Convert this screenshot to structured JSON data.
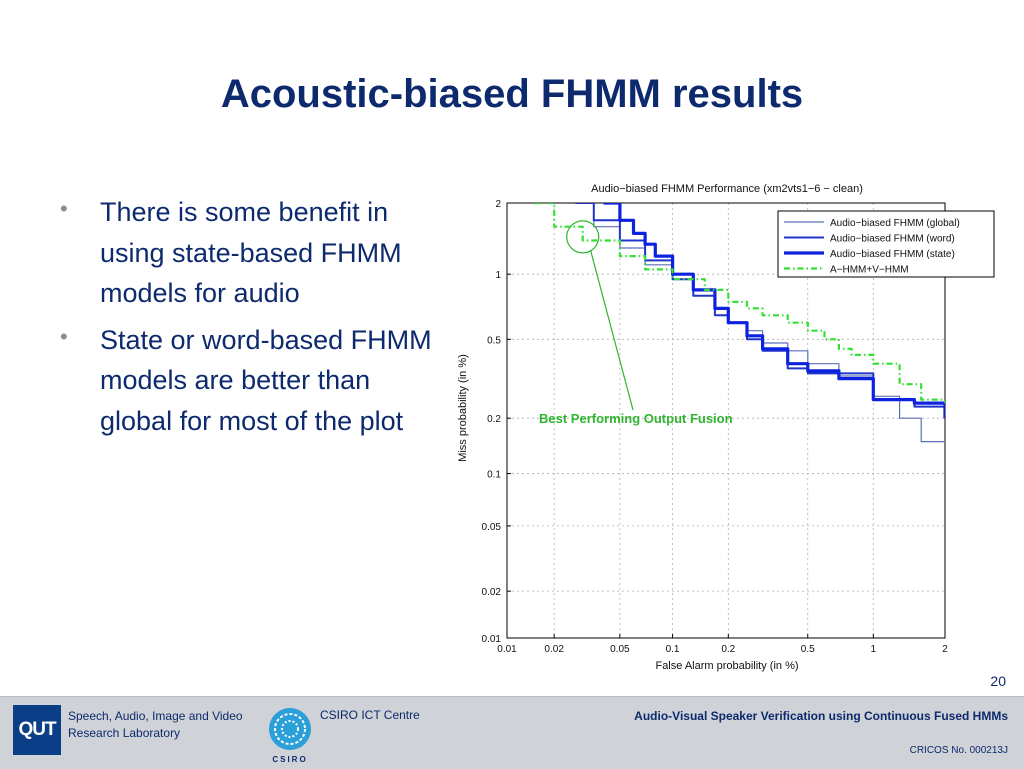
{
  "slide": {
    "title": "Acoustic-biased FHMM results",
    "bullets": [
      "There is some benefit in using state-based FHMM models for audio",
      "State or word-based FHMM models are better than global for most of the plot"
    ],
    "page_number": "20"
  },
  "footer": {
    "logo_text": "QUT",
    "lab_name": "Speech, Audio, Image and Video Research Laboratory",
    "centre_name": "CSIRO ICT Centre",
    "csiro_logo_text": "CSIRO",
    "talk_title": "Audio-Visual Speaker Verification using Continuous Fused HMMs",
    "cricos": "CRICOS No. 000213J"
  },
  "colors": {
    "title": "#0d2a6e",
    "series_global": "#5c6fb8",
    "series_word": "#1f35c9",
    "series_state": "#0d22e0",
    "series_fusion": "#33e033",
    "annotation": "#2fb52f",
    "footer_bg": "#cfd2d6"
  },
  "chart_data": {
    "type": "line",
    "title": "Audio−biased FHMM Performance (xm2vts1−6 − clean)",
    "xlabel": "False Alarm probability (in %)",
    "ylabel": "Miss probability (in %)",
    "x_scale": "normal-deviate",
    "y_scale": "normal-deviate",
    "xlim": [
      0.01,
      2
    ],
    "ylim": [
      0.01,
      2
    ],
    "x_ticks": [
      0.01,
      0.02,
      0.05,
      0.1,
      0.2,
      0.5,
      1,
      2
    ],
    "x_tick_labels": [
      "0.01",
      "0.02",
      "0.05",
      "0.1",
      "0.2",
      "0.5",
      "1",
      "2"
    ],
    "y_ticks": [
      0.01,
      0.02,
      0.05,
      0.1,
      0.2,
      0.5,
      1,
      2
    ],
    "y_tick_labels": [
      "0.01",
      "0.02",
      "0.05",
      "0.1",
      "0.2",
      "0.5",
      "1",
      "2"
    ],
    "grid": true,
    "legend_position": "top-right",
    "series": [
      {
        "name": "Audio−biased FHMM (global)",
        "style": "thin",
        "x": [
          0.027,
          0.035,
          0.05,
          0.07,
          0.1,
          0.13,
          0.17,
          0.2,
          0.25,
          0.3,
          0.4,
          0.5,
          0.7,
          1,
          1.3,
          1.6,
          2
        ],
        "y": [
          2,
          1.6,
          1.3,
          1.1,
          0.95,
          0.85,
          0.7,
          0.6,
          0.55,
          0.48,
          0.44,
          0.38,
          0.33,
          0.26,
          0.2,
          0.15,
          0.15
        ]
      },
      {
        "name": "Audio−biased FHMM (word)",
        "style": "medium",
        "x": [
          0.027,
          0.035,
          0.05,
          0.07,
          0.1,
          0.13,
          0.17,
          0.2,
          0.25,
          0.3,
          0.4,
          0.5,
          0.7,
          1,
          1.5,
          2
        ],
        "y": [
          2,
          1.7,
          1.4,
          1.15,
          0.95,
          0.8,
          0.65,
          0.6,
          0.5,
          0.44,
          0.36,
          0.34,
          0.34,
          0.25,
          0.23,
          0.2
        ]
      },
      {
        "name": "Audio−biased FHMM (state)",
        "style": "thick",
        "x": [
          0.04,
          0.05,
          0.06,
          0.07,
          0.08,
          0.1,
          0.13,
          0.17,
          0.2,
          0.25,
          0.3,
          0.4,
          0.5,
          0.7,
          1,
          1.5,
          2
        ],
        "y": [
          2,
          1.7,
          1.5,
          1.35,
          1.2,
          1.0,
          0.85,
          0.7,
          0.6,
          0.52,
          0.45,
          0.38,
          0.35,
          0.32,
          0.25,
          0.24,
          0.2
        ]
      },
      {
        "name": "A−HMM+V−HMM",
        "style": "dashdot",
        "x": [
          0.015,
          0.02,
          0.03,
          0.05,
          0.07,
          0.1,
          0.15,
          0.2,
          0.25,
          0.3,
          0.4,
          0.5,
          0.6,
          0.7,
          0.8,
          1,
          1.3,
          1.6,
          2
        ],
        "y": [
          2,
          1.6,
          1.4,
          1.2,
          1.05,
          0.95,
          0.85,
          0.75,
          0.7,
          0.65,
          0.6,
          0.55,
          0.5,
          0.45,
          0.42,
          0.38,
          0.3,
          0.25,
          0.24
        ]
      }
    ],
    "annotations": [
      {
        "text": "Best Performing Output Fusion",
        "target_x": 0.03,
        "target_y": 1.45
      }
    ]
  }
}
